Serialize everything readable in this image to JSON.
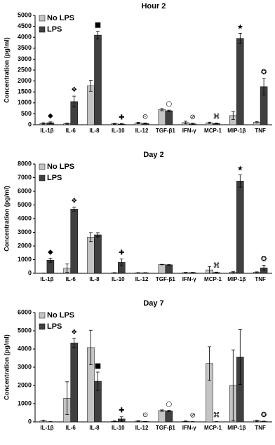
{
  "chart_data": [
    {
      "type": "bar",
      "title": "Hour 2",
      "y_label": "Concentration (pg/ml)",
      "categories": [
        "IL-1β",
        "IL-6",
        "IL-8",
        "IL-10",
        "IL-12",
        "TGF-β1",
        "IFN-γ",
        "MCP-1",
        "MIP-1β",
        "TNF"
      ],
      "series": [
        {
          "name": "No LPS",
          "color": "#c4c4c4",
          "values": [
            60,
            50,
            1780,
            40,
            80,
            690,
            100,
            90,
            420,
            110
          ],
          "errors": [
            30,
            20,
            250,
            20,
            30,
            50,
            60,
            30,
            180,
            30
          ]
        },
        {
          "name": "LPS",
          "color": "#404040",
          "values": [
            90,
            1060,
            4100,
            30,
            60,
            640,
            40,
            60,
            3950,
            1740
          ],
          "errors": [
            40,
            250,
            180,
            20,
            20,
            30,
            30,
            20,
            230,
            380
          ]
        }
      ],
      "markers": [
        "◆",
        "❖",
        "■",
        "✚",
        "⊙",
        "○",
        "⊘",
        "⌘",
        "★",
        "✪"
      ],
      "ylim": [
        0,
        5000
      ],
      "yticks": [
        0,
        500,
        1000,
        1500,
        2000,
        2500,
        3000,
        3500,
        4000,
        4500,
        5000
      ]
    },
    {
      "type": "bar",
      "title": "Day 2",
      "y_label": "Concentration (pg/ml)",
      "categories": [
        "IL-1β",
        "IL-6",
        "IL-8",
        "IL-10",
        "IL-12",
        "TGF-β1",
        "IFN-γ",
        "MCP-1",
        "MIP-1β",
        "TNF"
      ],
      "series": [
        {
          "name": "No LPS",
          "color": "#c4c4c4",
          "values": [
            10,
            380,
            2650,
            30,
            40,
            640,
            50,
            250,
            80,
            80
          ],
          "errors": [
            10,
            300,
            330,
            20,
            10,
            20,
            20,
            250,
            40,
            30
          ]
        },
        {
          "name": "LPS",
          "color": "#404040",
          "values": [
            960,
            4700,
            2820,
            800,
            40,
            620,
            50,
            60,
            6750,
            400
          ],
          "errors": [
            150,
            150,
            150,
            250,
            10,
            20,
            20,
            30,
            450,
            180
          ]
        }
      ],
      "markers": [
        "◆",
        "❖",
        null,
        "✚",
        null,
        null,
        null,
        "⌘",
        "★",
        "✪"
      ],
      "ylim": [
        0,
        8000
      ],
      "yticks": [
        0,
        1000,
        2000,
        3000,
        4000,
        5000,
        6000,
        7000,
        8000
      ]
    },
    {
      "type": "bar",
      "title": "Day 7",
      "y_label": "Concentration (pg/ml)",
      "categories": [
        "IL-1β",
        "IL-6",
        "IL-8",
        "IL-10",
        "IL-12",
        "TGF-β1",
        "IFN-γ",
        "MCP-1",
        "MIP-1β",
        "TNF"
      ],
      "series": [
        {
          "name": "No LPS",
          "color": "#c4c4c4",
          "values": [
            50,
            1300,
            4080,
            30,
            40,
            620,
            30,
            3200,
            2000,
            60
          ],
          "errors": [
            50,
            900,
            950,
            20,
            20,
            40,
            20,
            920,
            1950,
            40
          ]
        },
        {
          "name": "LPS",
          "color": "#404040",
          "values": [
            10,
            4330,
            2230,
            160,
            20,
            600,
            10,
            10,
            3560,
            20
          ],
          "errors": [
            10,
            250,
            500,
            120,
            10,
            30,
            10,
            10,
            1500,
            20
          ]
        }
      ],
      "markers": [
        null,
        "❖",
        "■",
        "✚",
        "⊙",
        "○",
        "⊘",
        "⌘",
        null,
        "✪"
      ],
      "ylim": [
        0,
        6000
      ],
      "yticks": [
        0,
        1000,
        2000,
        3000,
        4000,
        5000,
        6000
      ]
    }
  ]
}
